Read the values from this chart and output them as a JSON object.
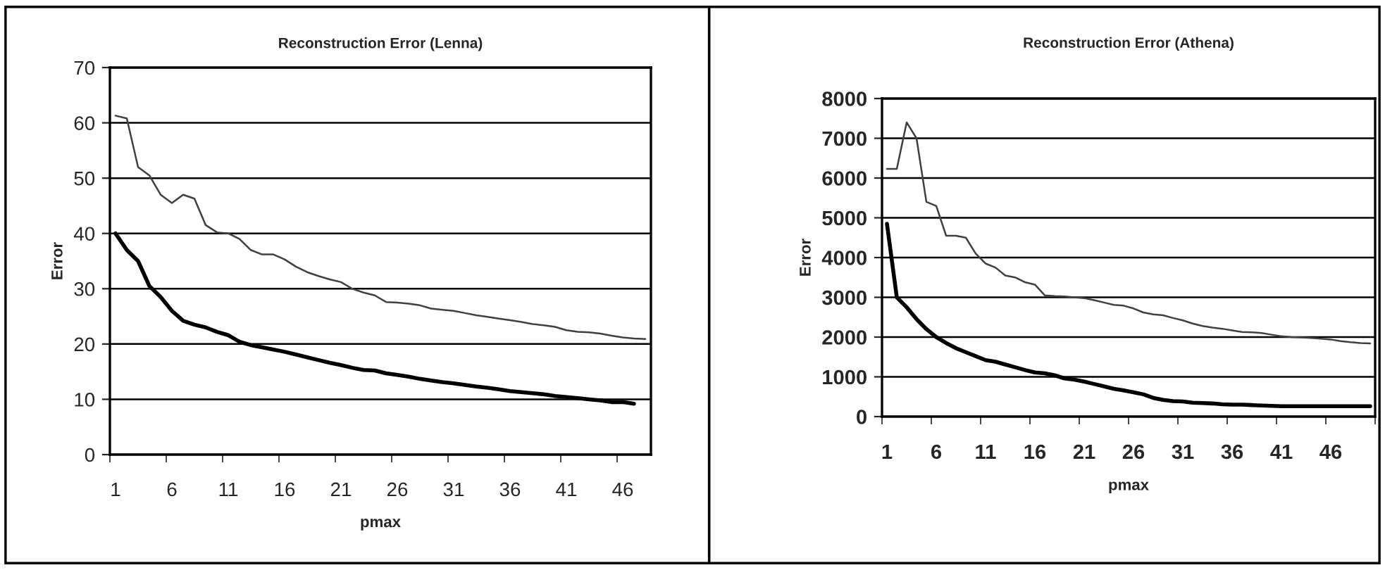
{
  "chart_data": [
    {
      "type": "line",
      "title": "Reconstruction Error (Lenna)",
      "xlabel": "pmax",
      "ylabel": "Error",
      "categories": [
        "1",
        null,
        null,
        null,
        null,
        "6",
        null,
        null,
        null,
        null,
        "11",
        null,
        null,
        null,
        null,
        "16",
        null,
        null,
        null,
        null,
        "21",
        null,
        null,
        null,
        null,
        "26",
        null,
        null,
        null,
        null,
        "31",
        null,
        null,
        null,
        null,
        "36",
        null,
        null,
        null,
        null,
        "41",
        null,
        null,
        null,
        null,
        "46",
        null,
        null
      ],
      "series": [
        {
          "color": "#404040",
          "values": [
            61.3,
            60.8,
            52,
            50.5,
            47,
            45.5,
            47,
            46.3,
            41.5,
            40.2,
            40,
            39,
            37,
            36.2,
            36.2,
            35.3,
            34,
            33,
            32.3,
            31.7,
            31.2,
            30,
            29.3,
            28.8,
            27.6,
            27.5,
            27.3,
            27,
            26.4,
            26.2,
            26,
            25.6,
            25.2,
            24.9,
            24.6,
            24.3,
            24,
            23.6,
            23.4,
            23.1,
            22.5,
            22.2,
            22.1,
            21.9,
            21.5,
            21.2,
            21,
            20.9
          ]
        },
        {
          "color": "#000000",
          "values": [
            40,
            37,
            35,
            30.5,
            28.5,
            26,
            24.2,
            23.5,
            23,
            22.2,
            21.6,
            20.4,
            19.8,
            19.4,
            19,
            18.6,
            18.1,
            17.6,
            17.1,
            16.6,
            16.2,
            15.7,
            15.3,
            15.2,
            14.7,
            14.4,
            14.1,
            13.7,
            13.4,
            13.1,
            12.9,
            12.6,
            12.3,
            12.1,
            11.8,
            11.5,
            11.3,
            11.1,
            10.9,
            10.6,
            10.4,
            10.2,
            10,
            9.8,
            9.5,
            9.5,
            9.2,
            null
          ]
        }
      ],
      "ylim": [
        0,
        70
      ],
      "yticks": [
        0,
        10,
        20,
        30,
        40,
        50,
        60,
        70
      ],
      "grid": "y",
      "legend": false,
      "marker": "none",
      "line_style": "solid"
    },
    {
      "type": "line",
      "title": "Reconstruction Error (Athena)",
      "xlabel": "pmax",
      "ylabel": "Error",
      "categories": [
        "1",
        null,
        null,
        null,
        null,
        "6",
        null,
        null,
        null,
        null,
        "11",
        null,
        null,
        null,
        null,
        "16",
        null,
        null,
        null,
        null,
        "21",
        null,
        null,
        null,
        null,
        "26",
        null,
        null,
        null,
        null,
        "31",
        null,
        null,
        null,
        null,
        "36",
        null,
        null,
        null,
        null,
        "41",
        null,
        null,
        null,
        null,
        "46",
        null,
        null,
        null,
        null
      ],
      "series": [
        {
          "color": "#404040",
          "values": [
            6230,
            6230,
            7400,
            7000,
            5400,
            5300,
            4550,
            4550,
            4500,
            4100,
            3850,
            3750,
            3550,
            3500,
            3380,
            3320,
            3050,
            3030,
            3020,
            3000,
            2980,
            2930,
            2870,
            2810,
            2790,
            2720,
            2620,
            2570,
            2550,
            2480,
            2420,
            2340,
            2280,
            2240,
            2210,
            2170,
            2130,
            2120,
            2100,
            2060,
            2020,
            2000,
            1990,
            1980,
            1960,
            1940,
            1900,
            1870,
            1850,
            1840
          ]
        },
        {
          "color": "#000000",
          "values": [
            4850,
            3000,
            2750,
            2450,
            2200,
            2000,
            1850,
            1720,
            1620,
            1520,
            1420,
            1380,
            1310,
            1240,
            1170,
            1110,
            1090,
            1040,
            960,
            930,
            880,
            820,
            760,
            700,
            660,
            610,
            560,
            470,
            420,
            390,
            380,
            350,
            340,
            330,
            310,
            300,
            300,
            290,
            280,
            270,
            260,
            260,
            260,
            260,
            260,
            260,
            260,
            260,
            260,
            260
          ]
        }
      ],
      "ylim": [
        0,
        8000
      ],
      "yticks": [
        0,
        1000,
        2000,
        3000,
        4000,
        5000,
        6000,
        7000,
        8000
      ],
      "grid": "y",
      "legend": false,
      "marker": "none",
      "line_style": "solid"
    }
  ]
}
